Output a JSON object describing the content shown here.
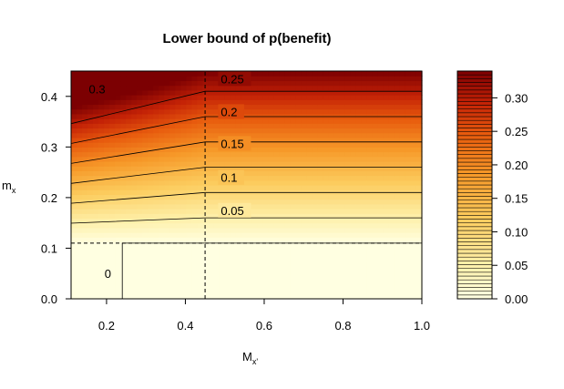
{
  "chart_data": {
    "type": "heatmap",
    "title": "Lower bound of p(benefit)",
    "xlabel_main": "M",
    "xlabel_sub": "x'",
    "ylabel_main": "m",
    "ylabel_sub": "x",
    "xlim": [
      0.11,
      1.0
    ],
    "ylim": [
      0.0,
      0.45
    ],
    "x_ticks": [
      0.2,
      0.4,
      0.6,
      0.8,
      1.0
    ],
    "x_tick_labels": [
      "0.2",
      "0.4",
      "0.6",
      "0.8",
      "1.0"
    ],
    "y_ticks": [
      0.0,
      0.1,
      0.2,
      0.3,
      0.4
    ],
    "y_tick_labels": [
      "0.0",
      "0.1",
      "0.2",
      "0.3",
      "0.4"
    ],
    "value_range": [
      0.0,
      0.34
    ],
    "contour_levels": [
      0.0,
      0.05,
      0.1,
      0.15,
      0.2,
      0.25,
      0.3
    ],
    "contour_labels": [
      {
        "text": "0",
        "x": 0.195,
        "y": 0.05
      },
      {
        "text": "0.05",
        "x": 0.49,
        "y": 0.175
      },
      {
        "text": "0.1",
        "x": 0.49,
        "y": 0.24
      },
      {
        "text": "0.15",
        "x": 0.49,
        "y": 0.307
      },
      {
        "text": "0.2",
        "x": 0.49,
        "y": 0.37
      },
      {
        "text": "0.25",
        "x": 0.49,
        "y": 0.435
      },
      {
        "text": "0.3",
        "x": 0.155,
        "y": 0.415
      }
    ],
    "reference_lines": {
      "vertical_x": 0.45,
      "horizontal_y": 0.11,
      "style": "dashed"
    },
    "colorbar": {
      "ticks": [
        0.0,
        0.05,
        0.1,
        0.15,
        0.2,
        0.25,
        0.3
      ],
      "tick_labels": [
        "0.00",
        "0.05",
        "0.10",
        "0.15",
        "0.20",
        "0.25",
        "0.30"
      ],
      "levels": 60
    }
  }
}
